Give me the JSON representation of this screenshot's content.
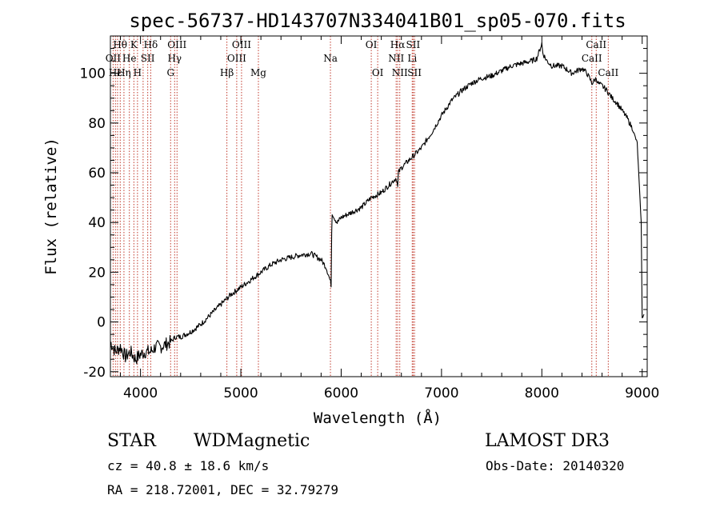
{
  "chart_data": {
    "type": "line",
    "title": "spec-56737-HD143707N334041B01_sp05-070.fits",
    "xlabel": "Wavelength (Å)",
    "ylabel": "Flux (relative)",
    "xlim": [
      3700,
      9050
    ],
    "ylim": [
      -22,
      115
    ],
    "xticks": [
      4000,
      5000,
      6000,
      7000,
      8000,
      9000
    ],
    "yticks": [
      -20,
      0,
      20,
      40,
      60,
      80,
      100
    ],
    "grid": false,
    "series": [
      {
        "name": "flux",
        "x": [
          3700,
          3750,
          3800,
          3850,
          3900,
          3950,
          4000,
          4050,
          4100,
          4150,
          4200,
          4250,
          4300,
          4350,
          4400,
          4500,
          4600,
          4700,
          4800,
          4900,
          5000,
          5100,
          5200,
          5300,
          5400,
          5500,
          5600,
          5700,
          5800,
          5850,
          5880,
          5900,
          5905,
          5910,
          5930,
          5960,
          6000,
          6100,
          6200,
          6300,
          6400,
          6500,
          6550,
          6563,
          6570,
          6600,
          6700,
          6800,
          6900,
          7000,
          7100,
          7200,
          7300,
          7400,
          7500,
          7600,
          7700,
          7800,
          7900,
          7950,
          8000,
          8010,
          8050,
          8100,
          8200,
          8300,
          8400,
          8450,
          8500,
          8542,
          8560,
          8600,
          8650,
          8700,
          8750,
          8800,
          8850,
          8900,
          8950,
          8990,
          9000,
          9020
        ],
        "y": [
          -8,
          -12,
          -10,
          -14,
          -12,
          -15,
          -13,
          -12,
          -12,
          -10,
          -10,
          -9,
          -8,
          -6,
          -6,
          -4,
          -1,
          3,
          7,
          11,
          14,
          17,
          20,
          23,
          25,
          26,
          27,
          27.5,
          25,
          22,
          18,
          15,
          36,
          44,
          42,
          40,
          42,
          44,
          46,
          50,
          52,
          56,
          58,
          54,
          60,
          62,
          66,
          70,
          76,
          83,
          89,
          93,
          96,
          98,
          99,
          101,
          103,
          104,
          105,
          106,
          112,
          108,
          105,
          103,
          103,
          100,
          102,
          100,
          96,
          98,
          96,
          95,
          93,
          90,
          88,
          85,
          82,
          78,
          72,
          40,
          2,
          3
        ]
      }
    ],
    "annotation_lines": [
      3727,
      3750,
      3771,
      3798,
      3835,
      3889,
      3934,
      3970,
      4026,
      4102,
      4072,
      4300,
      4340,
      4364,
      4861,
      4959,
      5007,
      5175,
      5893,
      6300,
      6364,
      6548,
      6563,
      6584,
      6717,
      6731,
      6708,
      8498,
      8542,
      8662
    ],
    "annotations": [
      {
        "text": "Hθ",
        "wavelength": 3797,
        "row": 0
      },
      {
        "text": "K",
        "wavelength": 3934,
        "row": 0
      },
      {
        "text": "Hδ",
        "wavelength": 4102,
        "row": 0
      },
      {
        "text": "OIII",
        "wavelength": 4364,
        "row": 0
      },
      {
        "text": "OIII",
        "wavelength": 5007,
        "row": 0
      },
      {
        "text": "OI",
        "wavelength": 6300,
        "row": 0
      },
      {
        "text": "Hα",
        "wavelength": 6563,
        "row": 0
      },
      {
        "text": "SII",
        "wavelength": 6717,
        "row": 0
      },
      {
        "text": "CaII",
        "wavelength": 8542,
        "row": 0
      },
      {
        "text": "OII",
        "wavelength": 3727,
        "row": 1
      },
      {
        "text": "He",
        "wavelength": 3889,
        "row": 1
      },
      {
        "text": "SII",
        "wavelength": 4072,
        "row": 1
      },
      {
        "text": "Hγ",
        "wavelength": 4340,
        "row": 1
      },
      {
        "text": "OIII",
        "wavelength": 4959,
        "row": 1
      },
      {
        "text": "Na",
        "wavelength": 5893,
        "row": 1
      },
      {
        "text": "NII",
        "wavelength": 6548,
        "row": 1
      },
      {
        "text": "Li",
        "wavelength": 6708,
        "row": 1
      },
      {
        "text": "CaII",
        "wavelength": 8498,
        "row": 1
      },
      {
        "text": "Hε",
        "wavelength": 3750,
        "row": 2
      },
      {
        "text": "Hη",
        "wavelength": 3835,
        "row": 2
      },
      {
        "text": "H",
        "wavelength": 3970,
        "row": 2
      },
      {
        "text": "G",
        "wavelength": 4300,
        "row": 2
      },
      {
        "text": "Hβ",
        "wavelength": 4861,
        "row": 2
      },
      {
        "text": "Mg",
        "wavelength": 5175,
        "row": 2
      },
      {
        "text": "OI",
        "wavelength": 6364,
        "row": 2
      },
      {
        "text": "NII",
        "wavelength": 6584,
        "row": 2
      },
      {
        "text": "SII",
        "wavelength": 6731,
        "row": 2
      },
      {
        "text": "CaII",
        "wavelength": 8662,
        "row": 2
      }
    ]
  },
  "info": {
    "class_label": "STAR",
    "subclass": "WDMagnetic",
    "survey": "LAMOST DR3",
    "cz": "cz = 40.8 ± 18.6 km/s",
    "obs_date": "Obs-Date: 20140320",
    "coords": "RA = 218.72001, DEC =  32.79279"
  }
}
